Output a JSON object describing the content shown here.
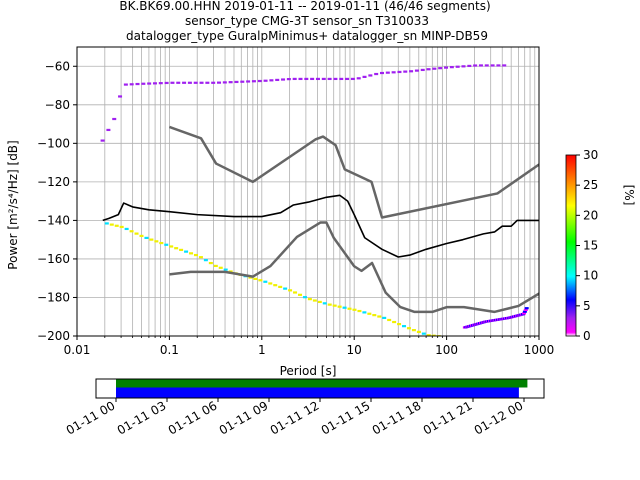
{
  "title": {
    "line1": "BK.BK69.00.HHN   2019-01-11 -- 2019-01-11  (46/46 segments)",
    "line2": "sensor_type CMG-3T sensor_sn T310033",
    "line3": "datalogger_type GuralpMinimus+ datalogger_sn MINP-DB59"
  },
  "chart_data": [
    {
      "type": "heatmap",
      "subtype": "probabilistic-power-spectral-density",
      "xlabel": "Period [s]",
      "ylabel": "Power [m²/s⁴/Hz] [dB]",
      "x_scale": "log",
      "xlim": [
        0.01,
        1000
      ],
      "ylim": [
        -200,
        -50
      ],
      "x_ticks": [
        {
          "value": 0.01,
          "label": "0.01"
        },
        {
          "value": 0.1,
          "label": "0.1"
        },
        {
          "value": 1,
          "label": "1"
        },
        {
          "value": 10,
          "label": "10"
        },
        {
          "value": 100,
          "label": "100"
        },
        {
          "value": 1000,
          "label": "1000"
        }
      ],
      "y_ticks": [
        -60,
        -80,
        -100,
        -120,
        -140,
        -160,
        -180,
        -200
      ],
      "grid": true,
      "colorbar": {
        "label": "[%]",
        "range": [
          0,
          30
        ],
        "ticks": [
          0,
          5,
          10,
          15,
          20,
          25,
          30
        ],
        "colormap": "pqlx"
      },
      "noise_models": {
        "color": "#666666",
        "high": [
          [
            0.1,
            -91.5
          ],
          [
            0.22,
            -97.4
          ],
          [
            0.32,
            -110.5
          ],
          [
            0.8,
            -120
          ],
          [
            3.8,
            -98
          ],
          [
            4.6,
            -96.5
          ],
          [
            6.3,
            -101
          ],
          [
            7.9,
            -113.5
          ],
          [
            15.4,
            -120
          ],
          [
            20,
            -138.5
          ],
          [
            354.8,
            -126
          ],
          [
            1000,
            -111
          ]
        ],
        "low": [
          [
            0.1,
            -168
          ],
          [
            0.17,
            -166.7
          ],
          [
            0.4,
            -166.7
          ],
          [
            0.8,
            -169.2
          ],
          [
            1.24,
            -163.7
          ],
          [
            2.4,
            -148.6
          ],
          [
            4.3,
            -141.1
          ],
          [
            5,
            -141.1
          ],
          [
            6,
            -149
          ],
          [
            10,
            -163.8
          ],
          [
            12,
            -166.2
          ],
          [
            15.6,
            -162.1
          ],
          [
            21.9,
            -177.5
          ],
          [
            31.6,
            -185
          ],
          [
            45,
            -187.5
          ],
          [
            70,
            -187.5
          ],
          [
            101,
            -185
          ],
          [
            154,
            -185
          ],
          [
            328,
            -187.5
          ],
          [
            600,
            -184.4
          ],
          [
            1000,
            -178
          ]
        ]
      },
      "mean": {
        "color": "#000000",
        "points": [
          [
            0.019,
            -140
          ],
          [
            0.022,
            -139
          ],
          [
            0.028,
            -137
          ],
          [
            0.032,
            -131
          ],
          [
            0.04,
            -133
          ],
          [
            0.06,
            -134.5
          ],
          [
            0.1,
            -135.5
          ],
          [
            0.2,
            -137
          ],
          [
            0.5,
            -138
          ],
          [
            1,
            -138
          ],
          [
            1.6,
            -136
          ],
          [
            2.2,
            -132
          ],
          [
            3.2,
            -130.5
          ],
          [
            5,
            -128
          ],
          [
            7,
            -127
          ],
          [
            8.5,
            -130
          ],
          [
            10,
            -137
          ],
          [
            13,
            -149
          ],
          [
            20,
            -155
          ],
          [
            30,
            -159
          ],
          [
            40,
            -158
          ],
          [
            60,
            -155
          ],
          [
            100,
            -152
          ],
          [
            150,
            -150
          ],
          [
            250,
            -147
          ],
          [
            330,
            -146
          ],
          [
            400,
            -143
          ],
          [
            500,
            -143
          ],
          [
            580,
            -140
          ],
          [
            1000,
            -140
          ]
        ]
      },
      "pdf_band": {
        "period_s": [
          0.019,
          0.022,
          0.03,
          0.05,
          0.1,
          0.2,
          0.3,
          0.5,
          1,
          2,
          3,
          4,
          5,
          7,
          9,
          11,
          14,
          20,
          30,
          50,
          80,
          100,
          150,
          300,
          400,
          600
        ],
        "upper_db": [
          -138,
          -137,
          -128,
          -129,
          -130,
          -128,
          -127,
          -128,
          -131,
          -127,
          -123,
          -119,
          -117,
          -114,
          -119,
          -126,
          -137,
          -146,
          -148,
          -146,
          -144,
          -141,
          -139,
          -137,
          -133,
          -127
        ],
        "lower_db": [
          -142,
          -141,
          -139,
          -140,
          -141,
          -141,
          -140,
          -140,
          -139,
          -139,
          -135,
          -131,
          -127,
          -123,
          -130,
          -140,
          -147,
          -152,
          -153,
          -150,
          -148,
          -146,
          -145,
          -145,
          -141,
          -138
        ]
      },
      "pdf_stragglers": {
        "high": [
          [
            0.018,
            -98
          ],
          [
            0.02,
            -94
          ],
          [
            0.024,
            -87
          ],
          [
            0.03,
            -69
          ],
          [
            0.05,
            -68.5
          ],
          [
            0.1,
            -68
          ],
          [
            0.3,
            -68
          ],
          [
            1,
            -67
          ],
          [
            2,
            -66
          ],
          [
            5,
            -66
          ],
          [
            10,
            -66
          ],
          [
            18,
            -63
          ],
          [
            40,
            -62
          ],
          [
            60,
            -61
          ],
          [
            100,
            -60
          ],
          [
            200,
            -59
          ],
          [
            400,
            -59
          ]
        ],
        "low": [
          [
            0.02,
            -141
          ],
          [
            0.03,
            -143
          ],
          [
            0.05,
            -148
          ],
          [
            0.1,
            -153
          ],
          [
            0.2,
            -158
          ],
          [
            0.3,
            -163
          ],
          [
            0.5,
            -167
          ],
          [
            1,
            -171
          ],
          [
            2,
            -176
          ],
          [
            3,
            -180
          ],
          [
            5,
            -183
          ],
          [
            10,
            -186
          ],
          [
            20,
            -190
          ],
          [
            40,
            -196
          ],
          [
            60,
            -199
          ],
          [
            100,
            -200
          ]
        ],
        "low_tail": [
          [
            150,
            -195
          ],
          [
            250,
            -192
          ],
          [
            450,
            -190
          ],
          [
            650,
            -188
          ],
          [
            700,
            -185
          ]
        ]
      }
    },
    {
      "type": "timeline",
      "subtype": "data-coverage",
      "x_ticks": [
        "01-11 00",
        "01-11 03",
        "01-11 06",
        "01-11 09",
        "01-11 12",
        "01-11 15",
        "01-11 18",
        "01-11 21",
        "01-12 00"
      ],
      "x_range_hours": [
        -1,
        25
      ],
      "series": [
        {
          "color": "#008000",
          "start_hour": 0,
          "end_hour": 24.2
        },
        {
          "color": "#0000ff",
          "start_hour": 0,
          "end_hour": 23.7
        }
      ]
    }
  ]
}
